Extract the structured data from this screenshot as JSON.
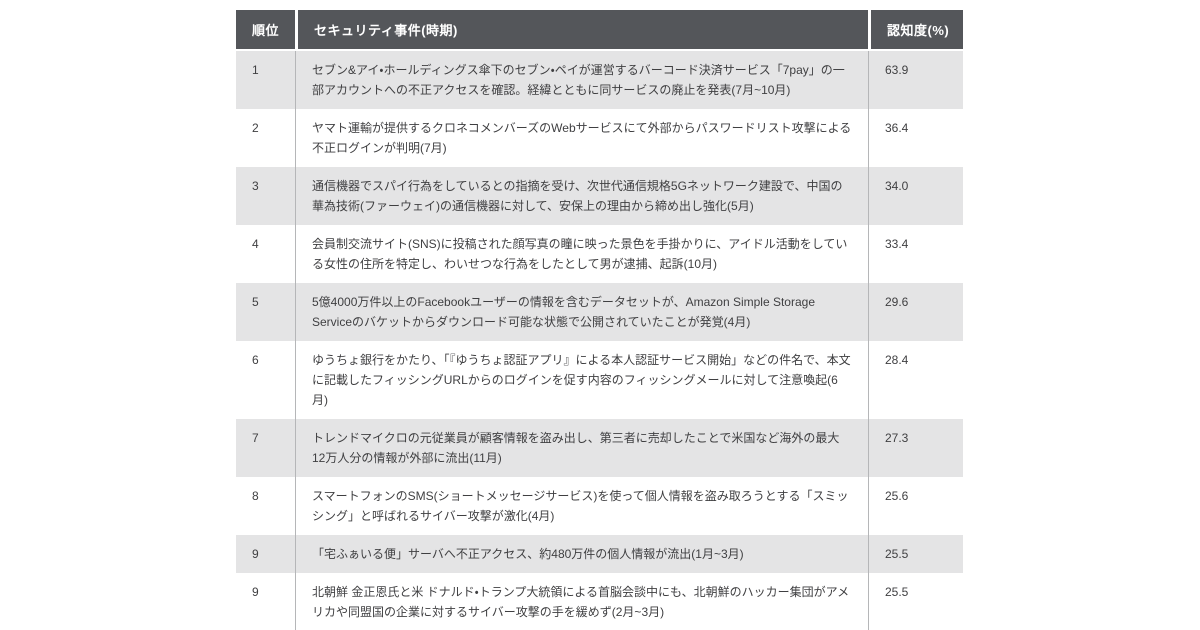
{
  "colors": {
    "header_bg": "#54565a",
    "header_text": "#ffffff",
    "row_alt_bg": "#e4e4e5",
    "row_bg": "#ffffff",
    "divider": "#b5b6b8",
    "bottom_border": "#a8aaad",
    "body_text": "#3f3f41"
  },
  "chart_data": {
    "type": "table",
    "columns": [
      "順位",
      "セキュリティ事件(時期)",
      "認知度(%)"
    ],
    "rows": [
      {
        "rank": "1",
        "incident": "セブン&アイ・ホールディングス傘下のセブン・ペイが運営するバーコード決済サービス「7pay」の一部アカウントへの不正アクセスを確認。経緯とともに同サービスの廃止を発表(7月~10月)",
        "awareness": "63.9"
      },
      {
        "rank": "2",
        "incident": "ヤマト運輸が提供するクロネコメンバーズのWebサービスにて外部からパスワードリスト攻撃による不正ログインが判明(7月)",
        "awareness": "36.4"
      },
      {
        "rank": "3",
        "incident": "通信機器でスパイ行為をしているとの指摘を受け、次世代通信規格5Gネットワーク建設で、中国の華為技術(ファーウェイ)の通信機器に対して、安保上の理由から締め出し強化(5月)",
        "awareness": "34.0"
      },
      {
        "rank": "4",
        "incident": "会員制交流サイト(SNS)に投稿された顔写真の瞳に映った景色を手掛かりに、アイドル活動をしている女性の住所を特定し、わいせつな行為をしたとして男が逮捕、起訴(10月)",
        "awareness": "33.4"
      },
      {
        "rank": "5",
        "incident": "5億4000万件以上のFacebookユーザーの情報を含むデータセットが、Amazon Simple Storage Serviceのバケットからダウンロード可能な状態で公開されていたことが発覚(4月)",
        "awareness": "29.6"
      },
      {
        "rank": "6",
        "incident": "ゆうちょ銀行をかたり、「『ゆうちょ認証アプリ』による本人認証サービス開始」などの件名で、本文に記載したフィッシングURLからのログインを促す内容のフィッシングメールに対して注意喚起(6月)",
        "awareness": "28.4"
      },
      {
        "rank": "7",
        "incident": "トレンドマイクロの元従業員が顧客情報を盗み出し、第三者に売却したことで米国など海外の最大12万人分の情報が外部に流出(11月)",
        "awareness": "27.3"
      },
      {
        "rank": "8",
        "incident": "スマートフォンのSMS(ショートメッセージサービス)を使って個人情報を盗み取ろうとする「スミッシング」と呼ばれるサイバー攻撃が激化(4月)",
        "awareness": "25.6"
      },
      {
        "rank": "9",
        "incident": "「宅ふぁいる便」サーバへ不正アクセス、約480万件の個人情報が流出(1月~3月)",
        "awareness": "25.5"
      },
      {
        "rank": "9",
        "incident": "北朝鮮 金正恩氏と米 ドナルド・トランプ大統領による首脳会談中にも、北朝鮮のハッカー集団がアメリカや同盟国の企業に対するサイバー攻撃の手を緩めず(2月~3月)",
        "awareness": "25.5"
      }
    ]
  }
}
